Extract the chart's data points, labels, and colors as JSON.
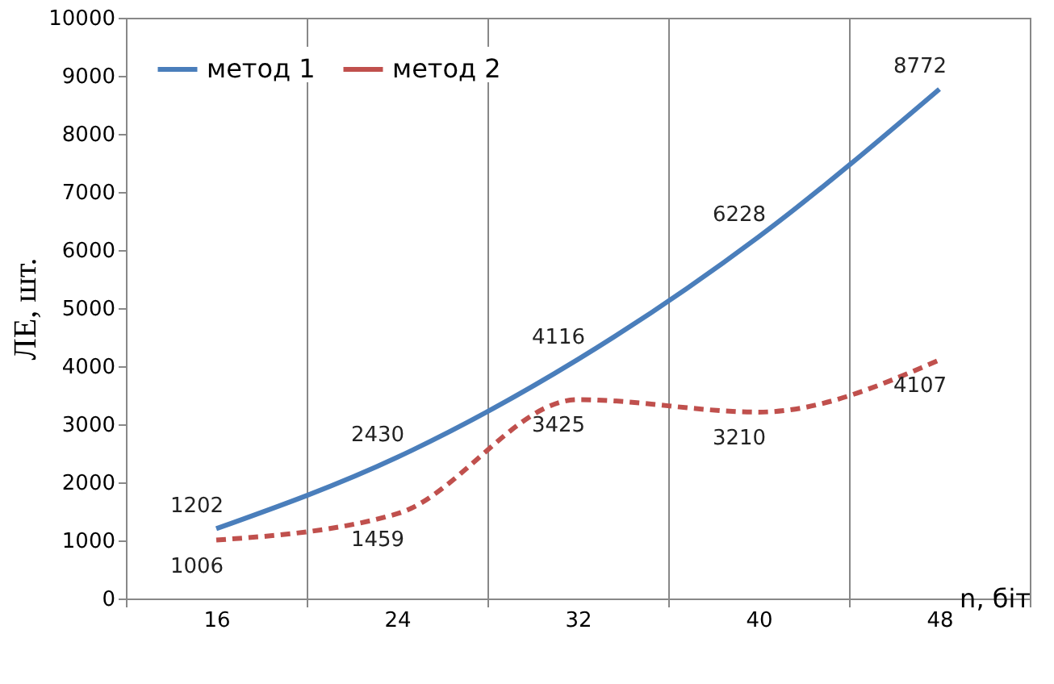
{
  "chart_data": {
    "type": "line",
    "xlabel": "n, біт",
    "ylabel": "ЛЕ, шт.",
    "categories": [
      "16",
      "24",
      "32",
      "40",
      "48"
    ],
    "series": [
      {
        "name": "метод 1",
        "color": "#4a7ebb",
        "line_style": "solid",
        "values": [
          1202,
          2430,
          4116,
          6228,
          8772
        ]
      },
      {
        "name": "метод 2",
        "color": "#c0504d",
        "line_style": "dashed",
        "values": [
          1006,
          1459,
          3425,
          3210,
          4107
        ]
      }
    ],
    "ylim": [
      0,
      10000
    ],
    "yticks": [
      0,
      1000,
      2000,
      3000,
      4000,
      5000,
      6000,
      7000,
      8000,
      9000,
      10000
    ],
    "grid": "x",
    "legend": "top left",
    "data_labels": true,
    "marker": "none"
  }
}
